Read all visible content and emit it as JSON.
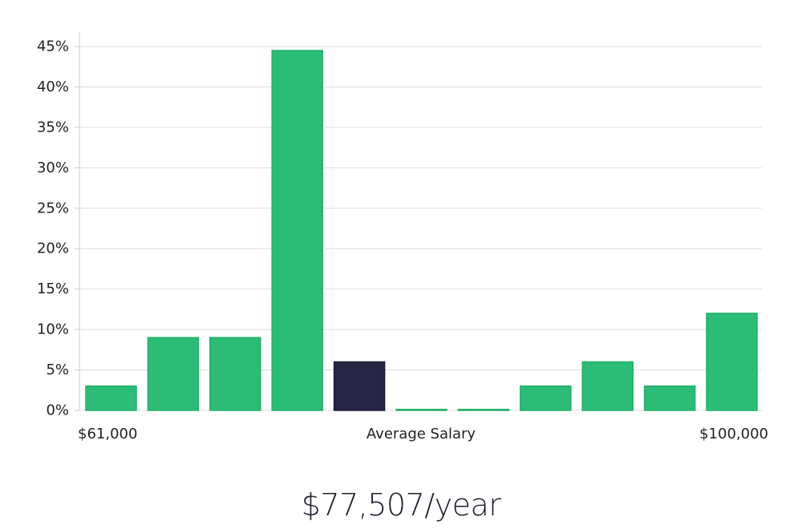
{
  "colors": {
    "bar": "#2bbd75",
    "bar_edge": "#22b069",
    "highlight": "#272544",
    "highlight_edge": "#1b1a38",
    "grid": "#dddddd",
    "axis": "#cccccc"
  },
  "chart_data": {
    "type": "bar",
    "title": "",
    "xlabel": "Average Salary",
    "ylabel": "",
    "ylim": [
      0,
      45
    ],
    "yticks": [
      "0%",
      "5%",
      "10%",
      "15%",
      "20%",
      "25%",
      "30%",
      "35%",
      "40%",
      "45%"
    ],
    "ytick_values": [
      0,
      5,
      10,
      15,
      20,
      25,
      30,
      35,
      40,
      45
    ],
    "x_min_label": "$61,000",
    "x_max_label": "$100,000",
    "values": [
      3,
      9,
      9,
      44.5,
      6,
      0.1,
      0.1,
      3,
      6,
      3,
      12
    ],
    "highlight_index": 4,
    "grid": true
  },
  "summary": {
    "salary": "$77,507/year"
  }
}
